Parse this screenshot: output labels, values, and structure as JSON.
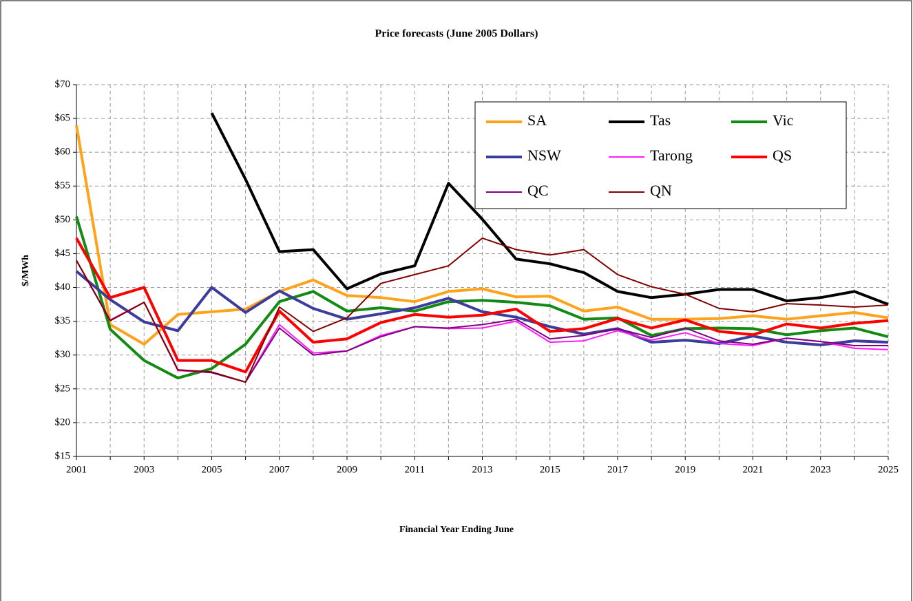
{
  "chart_data": {
    "type": "line",
    "title": "Price forecasts (June 2005 Dollars)",
    "x_label": "Financial Year Ending June",
    "y_label": "$/MWh",
    "x": [
      2001,
      2002,
      2003,
      2004,
      2005,
      2006,
      2007,
      2008,
      2009,
      2010,
      2011,
      2012,
      2013,
      2014,
      2015,
      2016,
      2017,
      2018,
      2019,
      2020,
      2021,
      2022,
      2023,
      2024,
      2025
    ],
    "xlim": [
      2001,
      2025
    ],
    "xticks": [
      2001,
      2003,
      2005,
      2007,
      2009,
      2011,
      2013,
      2015,
      2017,
      2019,
      2021,
      2023,
      2025
    ],
    "ylim": [
      15,
      70
    ],
    "yticks": [
      {
        "value": 15,
        "label": "$15"
      },
      {
        "value": 20,
        "label": "$20"
      },
      {
        "value": 25,
        "label": "$25"
      },
      {
        "value": 30,
        "label": "$30"
      },
      {
        "value": 35,
        "label": "$35"
      },
      {
        "value": 40,
        "label": "$40"
      },
      {
        "value": 45,
        "label": "$45"
      },
      {
        "value": 50,
        "label": "$50"
      },
      {
        "value": 55,
        "label": "$55"
      },
      {
        "value": 60,
        "label": "$60"
      },
      {
        "value": 65,
        "label": "$65"
      },
      {
        "value": 70,
        "label": "$70"
      }
    ],
    "grid": true,
    "series": [
      {
        "name": "SA",
        "color": "#ffa21c",
        "values": [
          64,
          34.5,
          31.6,
          36,
          36.4,
          36.8,
          39.4,
          41.1,
          38.8,
          38.5,
          37.9,
          39.4,
          39.8,
          38.6,
          38.7,
          36.5,
          37.1,
          35.3,
          35.3,
          35.4,
          35.8,
          35.3,
          35.8,
          36.3,
          35.5
        ]
      },
      {
        "name": "Tas",
        "color": "#000000",
        "values": [
          null,
          null,
          null,
          null,
          65.8,
          56,
          45.3,
          45.6,
          39.8,
          42,
          43.2,
          55.4,
          50.1,
          44.2,
          43.5,
          42.2,
          39.4,
          38.5,
          39,
          39.7,
          39.7,
          38,
          38.5,
          39.4,
          37.5
        ]
      },
      {
        "name": "Vic",
        "color": "#138a13",
        "values": [
          50.5,
          33.8,
          29.2,
          26.6,
          28,
          31.6,
          37.9,
          39.4,
          36.5,
          37,
          36.5,
          37.9,
          38.1,
          37.8,
          37.3,
          35.3,
          35.5,
          32.9,
          33.9,
          34,
          33.9,
          33,
          33.6,
          34,
          32.7
        ]
      },
      {
        "name": "NSW",
        "color": "#3c3c9c",
        "values": [
          42.4,
          38.2,
          34.9,
          33.6,
          40,
          36.3,
          39.5,
          36.9,
          35.3,
          36.1,
          37,
          38.4,
          36.4,
          35.6,
          34.2,
          33.1,
          33.9,
          31.9,
          32.2,
          31.7,
          32.8,
          31.9,
          31.5,
          32.1,
          31.9
        ]
      },
      {
        "name": "Tarong",
        "color": "#ff1aff",
        "values": [
          44,
          35.2,
          37.8,
          27.7,
          27.4,
          26,
          34.5,
          30.3,
          30.6,
          32.9,
          34.2,
          33.9,
          34,
          35,
          31.9,
          32.1,
          33.6,
          32.2,
          33.3,
          31.7,
          31.4,
          32.5,
          32,
          31,
          30.8
        ]
      },
      {
        "name": "QS",
        "color": "#ff0000",
        "values": [
          47.3,
          38.5,
          40,
          29.2,
          29.2,
          27.5,
          36.5,
          31.9,
          32.4,
          34.8,
          36,
          35.6,
          35.9,
          36.8,
          33.5,
          33.9,
          35.4,
          34,
          35.2,
          33.5,
          33,
          34.6,
          34,
          34.7,
          35.1
        ]
      },
      {
        "name": "QC",
        "color": "#800080",
        "values": [
          44,
          35.1,
          37.8,
          27.8,
          27.4,
          26,
          34,
          30,
          30.6,
          32.7,
          34.2,
          34,
          34.5,
          35.3,
          32.4,
          32.9,
          33.9,
          32.6,
          34,
          32.1,
          31.6,
          32.5,
          32,
          31.4,
          31.4
        ]
      },
      {
        "name": "QN",
        "color": "#800000",
        "values": [
          44,
          35.1,
          37.8,
          27.8,
          27.5,
          26,
          37.1,
          33.5,
          35.5,
          40.6,
          41.9,
          43.2,
          47.3,
          45.6,
          44.8,
          45.6,
          41.9,
          40.1,
          39,
          36.9,
          36.4,
          37.6,
          37.4,
          37.1,
          37.4
        ]
      }
    ]
  }
}
